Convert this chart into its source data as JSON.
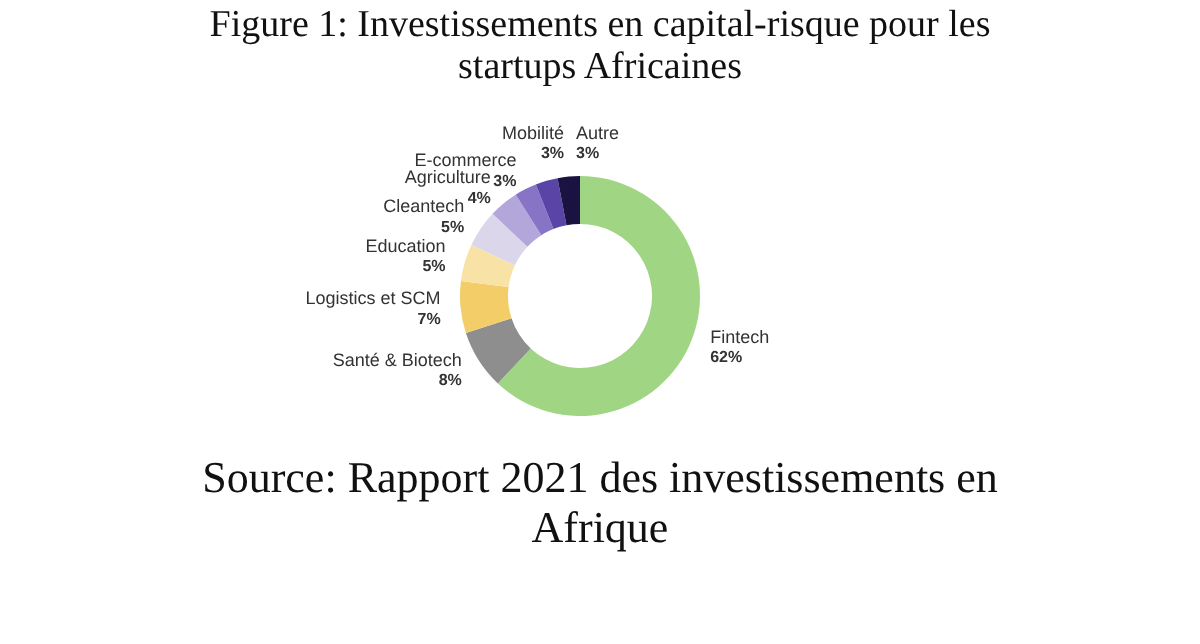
{
  "chart_data": {
    "type": "donut",
    "title": "Figure 1: Investissements en capital-risque pour les startups Africaines",
    "categories": [
      "Fintech",
      "Santé & Biotech",
      "Logistics et SCM",
      "Education",
      "Cleantech",
      "Agriculture",
      "E-commerce",
      "Mobilité",
      "Autre"
    ],
    "values": [
      62,
      8,
      7,
      5,
      5,
      4,
      3,
      3,
      3
    ],
    "value_labels": [
      "62%",
      "8%",
      "7%",
      "5%",
      "5%",
      "4%",
      "3%",
      "3%",
      "3%"
    ],
    "colors": [
      "#9fd583",
      "#8e8e8e",
      "#f3cd68",
      "#f8e2a6",
      "#dcd6ea",
      "#b3a6da",
      "#8874c6",
      "#5a45a6",
      "#1a1240"
    ],
    "legend": false,
    "annotations": [
      "Source: Rapport 2021 des investissements en Afrique"
    ]
  }
}
